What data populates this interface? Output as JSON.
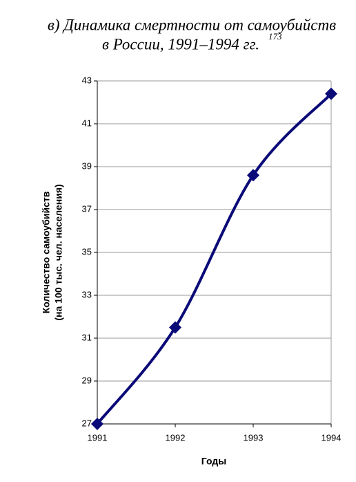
{
  "chart_data": {
    "type": "line",
    "title": [
      "в) Динамика смертности от самоубийств",
      "в России, 1991–1994 гг."
    ],
    "title_note": "173",
    "x_label": "Годы",
    "y_label": [
      "Количество самоубийств",
      "(на 100 тыс. чел. населения)"
    ],
    "x": [
      1991,
      1992,
      1993,
      1994
    ],
    "values": [
      27.0,
      31.5,
      38.6,
      42.4
    ],
    "color": "#0a0a78",
    "smooth": true,
    "xlim": [
      1991,
      1994
    ],
    "xticks": [
      1991,
      1992,
      1993,
      1994
    ],
    "ylim": [
      27,
      43
    ],
    "yticks": [
      27,
      29,
      31,
      33,
      35,
      37,
      39,
      41,
      43
    ],
    "grid": true
  }
}
